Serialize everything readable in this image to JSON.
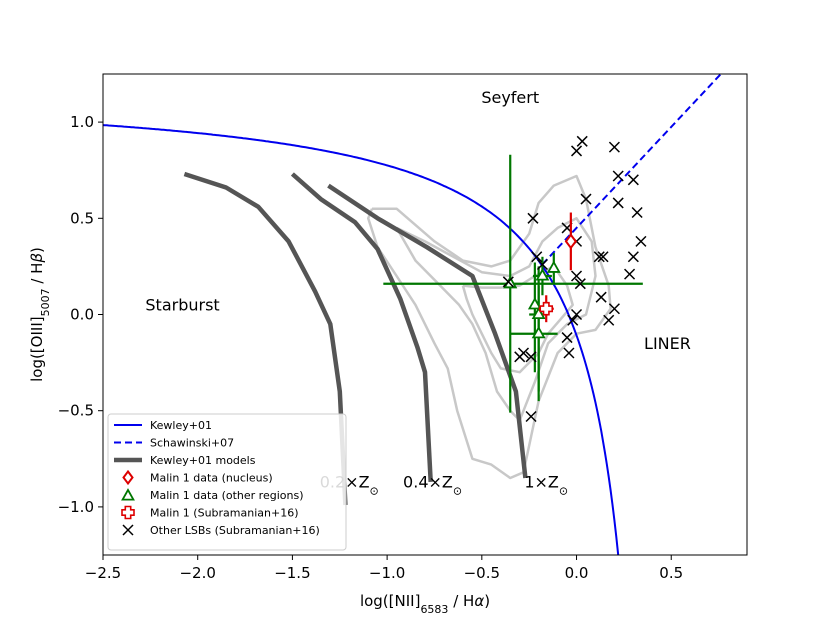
{
  "chart_data": {
    "type": "scatter",
    "xlabel_parts": [
      "log([NII]",
      "6583",
      " / H",
      "α",
      ")"
    ],
    "ylabel_parts": [
      "log([OIII]",
      "5007",
      " / H",
      "β",
      ")"
    ],
    "xlim": [
      -2.5,
      0.9
    ],
    "ylim": [
      -1.25,
      1.25
    ],
    "xticks": [
      -2.5,
      -2.0,
      -1.5,
      -1.0,
      -0.5,
      0.0,
      0.5
    ],
    "xtick_labels": [
      "−2.5",
      "−2.0",
      "−1.5",
      "−1.0",
      "−0.5",
      "0.0",
      "0.5"
    ],
    "yticks": [
      -1.0,
      -0.5,
      0.0,
      0.5,
      1.0
    ],
    "ytick_labels": [
      "−1.0",
      "−0.5",
      "0.0",
      "0.5",
      "1.0"
    ],
    "region_labels": [
      {
        "text": "Seyfert",
        "x": -0.35,
        "y": 1.1
      },
      {
        "text": "Starburst",
        "x": -2.08,
        "y": 0.02
      },
      {
        "text": "LINER",
        "x": 0.48,
        "y": -0.18
      }
    ],
    "metallicity_labels": [
      {
        "text": "0.2×Z",
        "x": -1.2,
        "y": -0.9
      },
      {
        "text": "0.4×Z",
        "x": -0.76,
        "y": -0.9
      },
      {
        "text": "1×Z",
        "x": -0.16,
        "y": -0.9
      }
    ],
    "kewley01": {
      "name": "Kewley+01",
      "color": "#0000ee",
      "style": "solid"
    },
    "schawinski07": {
      "name": "Schawinski+07",
      "color": "#0000ee",
      "style": "dashed",
      "slope": 1.05,
      "intercept": 0.45,
      "x_range": [
        -0.18,
        0.78
      ]
    },
    "kewley_models": {
      "name": "Kewley+01 models",
      "color": "#555555",
      "tracks": [
        [
          [
            -2.07,
            0.73
          ],
          [
            -1.85,
            0.66
          ],
          [
            -1.68,
            0.56
          ],
          [
            -1.52,
            0.38
          ],
          [
            -1.38,
            0.12
          ],
          [
            -1.3,
            -0.05
          ],
          [
            -1.25,
            -0.4
          ],
          [
            -1.22,
            -0.99
          ]
        ],
        [
          [
            -1.5,
            0.73
          ],
          [
            -1.35,
            0.6
          ],
          [
            -1.17,
            0.48
          ],
          [
            -1.05,
            0.34
          ],
          [
            -0.93,
            0.08
          ],
          [
            -0.84,
            -0.17
          ],
          [
            -0.8,
            -0.3
          ],
          [
            -0.77,
            -0.87
          ]
        ],
        [
          [
            -1.31,
            0.67
          ],
          [
            -1.05,
            0.5
          ],
          [
            -0.79,
            0.35
          ],
          [
            -0.55,
            0.2
          ],
          [
            -0.43,
            -0.1
          ],
          [
            -0.32,
            -0.4
          ],
          [
            -0.27,
            -0.85
          ]
        ]
      ]
    },
    "contours": {
      "color": "#c8c8c8",
      "lines": [
        [
          [
            -1.08,
            0.55
          ],
          [
            -0.95,
            0.55
          ],
          [
            -0.75,
            0.38
          ],
          [
            -0.6,
            0.28
          ],
          [
            -0.45,
            0.25
          ],
          [
            -0.35,
            0.28
          ],
          [
            -0.25,
            0.42
          ],
          [
            -0.2,
            0.58
          ],
          [
            -0.12,
            0.67
          ],
          [
            0.0,
            0.72
          ],
          [
            0.05,
            0.6
          ],
          [
            0.1,
            0.35
          ],
          [
            0.17,
            0.15
          ],
          [
            0.18,
            0.03
          ],
          [
            0.1,
            -0.08
          ],
          [
            0.0,
            -0.1
          ],
          [
            -0.1,
            -0.2
          ],
          [
            -0.2,
            -0.45
          ],
          [
            -0.28,
            -0.82
          ],
          [
            -0.35,
            -0.85
          ],
          [
            -0.45,
            -0.78
          ],
          [
            -0.55,
            -0.75
          ],
          [
            -0.63,
            -0.5
          ],
          [
            -0.68,
            -0.28
          ],
          [
            -0.75,
            -0.15
          ],
          [
            -0.85,
            0.05
          ],
          [
            -0.95,
            0.2
          ],
          [
            -1.05,
            0.35
          ],
          [
            -1.1,
            0.5
          ],
          [
            -1.08,
            0.55
          ]
        ],
        [
          [
            -0.95,
            0.45
          ],
          [
            -0.8,
            0.38
          ],
          [
            -0.65,
            0.3
          ],
          [
            -0.5,
            0.22
          ],
          [
            -0.35,
            0.2
          ],
          [
            -0.25,
            0.25
          ],
          [
            -0.18,
            0.38
          ],
          [
            -0.1,
            0.45
          ],
          [
            0.0,
            0.5
          ],
          [
            0.08,
            0.38
          ],
          [
            0.1,
            0.2
          ],
          [
            0.05,
            0.0
          ],
          [
            -0.05,
            -0.05
          ],
          [
            -0.15,
            -0.15
          ],
          [
            -0.22,
            -0.35
          ],
          [
            -0.3,
            -0.55
          ],
          [
            -0.35,
            -0.5
          ],
          [
            -0.42,
            -0.4
          ],
          [
            -0.48,
            -0.2
          ],
          [
            -0.55,
            -0.05
          ],
          [
            -0.62,
            0.05
          ],
          [
            -0.72,
            0.15
          ],
          [
            -0.85,
            0.28
          ],
          [
            -0.95,
            0.45
          ]
        ],
        [
          [
            -0.6,
            0.15
          ],
          [
            -0.5,
            0.14
          ],
          [
            -0.4,
            0.14
          ],
          [
            -0.3,
            0.15
          ],
          [
            -0.22,
            0.2
          ],
          [
            -0.12,
            0.25
          ],
          [
            -0.05,
            0.15
          ],
          [
            -0.02,
            0.05
          ],
          [
            -0.08,
            -0.02
          ],
          [
            -0.15,
            -0.1
          ],
          [
            -0.2,
            -0.2
          ],
          [
            -0.3,
            -0.3
          ],
          [
            -0.4,
            -0.28
          ],
          [
            -0.45,
            -0.2
          ],
          [
            -0.5,
            -0.1
          ],
          [
            -0.55,
            0.0
          ],
          [
            -0.58,
            0.08
          ],
          [
            -0.6,
            0.15
          ]
        ]
      ]
    },
    "malin_nucleus": {
      "name": "Malin 1 data (nucleus)",
      "color": "#dd0000",
      "x": -0.03,
      "y": 0.38,
      "yerr": 0.15,
      "xerr": 0.0
    },
    "malin_regions": {
      "name": "Malin 1 data (other regions)",
      "color": "#007700",
      "points": [
        {
          "x": -0.35,
          "y": 0.16,
          "xerr_lo": 0.67,
          "xerr_hi": 0.7,
          "yerr": 0.0
        },
        {
          "x": -0.35,
          "y": 0.16,
          "xerr_lo": 0.0,
          "xerr_hi": 0.0,
          "yerr_lo": 0.67,
          "yerr_hi": 0.67
        },
        {
          "x": -0.22,
          "y": 0.05,
          "xerr_lo": 0.0,
          "xerr_hi": 0.0,
          "yerr_lo": 0.35,
          "yerr_hi": 0.22
        },
        {
          "x": -0.2,
          "y": -0.1,
          "xerr_lo": 0.15,
          "xerr_hi": 0.1,
          "yerr_lo": 0.3,
          "yerr_hi": 0.25
        },
        {
          "x": -0.18,
          "y": 0.2,
          "xerr_lo": 0.05,
          "xerr_hi": 0.05,
          "yerr_lo": 0.1,
          "yerr_hi": 0.1
        },
        {
          "x": -0.12,
          "y": 0.24,
          "xerr_lo": 0.0,
          "xerr_hi": 0.0,
          "yerr_lo": 0.08,
          "yerr_hi": 0.08
        },
        {
          "x": -0.2,
          "y": 0.0,
          "xerr_lo": 0.05,
          "xerr_hi": 0.05,
          "yerr_lo": 0.45,
          "yerr_hi": 0.25
        }
      ]
    },
    "malin_subramanian": {
      "name": "Malin 1 (Subramanian+16)",
      "color": "#dd0000",
      "x": -0.16,
      "y": 0.03,
      "xerr": 0.04,
      "yerr": 0.07
    },
    "other_lsbs": {
      "name": "Other LSBs (Subramanian+16)",
      "color": "#000000",
      "points": [
        [
          0.03,
          0.9
        ],
        [
          0.0,
          0.85
        ],
        [
          0.2,
          0.87
        ],
        [
          0.22,
          0.72
        ],
        [
          0.3,
          0.7
        ],
        [
          -0.23,
          0.5
        ],
        [
          0.05,
          0.6
        ],
        [
          0.22,
          0.58
        ],
        [
          0.32,
          0.53
        ],
        [
          -0.05,
          0.45
        ],
        [
          0.0,
          0.38
        ],
        [
          0.34,
          0.38
        ],
        [
          -0.21,
          0.3
        ],
        [
          -0.18,
          0.26
        ],
        [
          0.12,
          0.3
        ],
        [
          0.14,
          0.3
        ],
        [
          0.3,
          0.3
        ],
        [
          0.28,
          0.21
        ],
        [
          0.0,
          0.2
        ],
        [
          0.02,
          0.16
        ],
        [
          -0.36,
          0.17
        ],
        [
          0.13,
          0.09
        ],
        [
          0.2,
          0.03
        ],
        [
          0.0,
          0.0
        ],
        [
          -0.02,
          -0.03
        ],
        [
          0.17,
          -0.03
        ],
        [
          -0.05,
          -0.12
        ],
        [
          -0.04,
          -0.2
        ],
        [
          -0.28,
          -0.2
        ],
        [
          -0.3,
          -0.22
        ],
        [
          -0.24,
          -0.22
        ],
        [
          -0.24,
          -0.53
        ]
      ]
    },
    "legend": {
      "entries": [
        "Kewley+01",
        "Schawinski+07",
        "Kewley+01 models",
        "Malin 1 data (nucleus)",
        "Malin 1 data (other regions)",
        "Malin 1 (Subramanian+16)",
        "Other LSBs (Subramanian+16)"
      ],
      "location": "lower-left"
    }
  }
}
